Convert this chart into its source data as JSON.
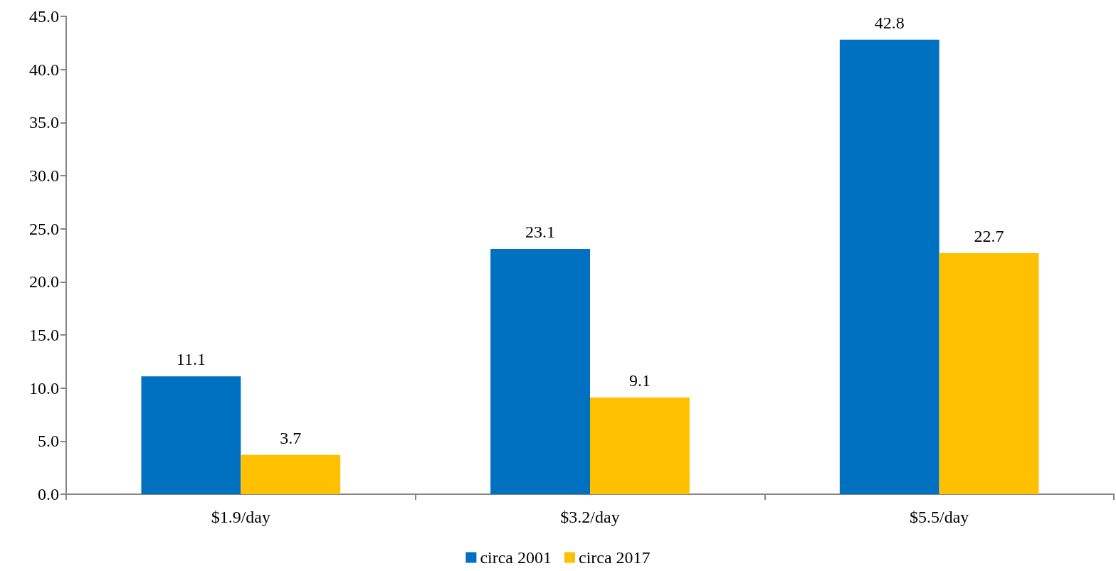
{
  "chart_data": {
    "type": "bar",
    "categories": [
      "$1.9/day",
      "$3.2/day",
      "$5.5/day"
    ],
    "series": [
      {
        "name": "circa 2001",
        "color": "#0070c0",
        "values": [
          11.1,
          23.1,
          42.8
        ]
      },
      {
        "name": "circa 2017",
        "color": "#ffc000",
        "values": [
          3.7,
          9.1,
          22.7
        ]
      }
    ],
    "ylim": [
      0,
      45
    ],
    "yticks": [
      {
        "value": 0,
        "label": "0.0"
      },
      {
        "value": 5,
        "label": "5.0"
      },
      {
        "value": 10,
        "label": "10.0"
      },
      {
        "value": 15,
        "label": "15.0"
      },
      {
        "value": 20,
        "label": "20.0"
      },
      {
        "value": 25,
        "label": "25.0"
      },
      {
        "value": 30,
        "label": "30.0"
      },
      {
        "value": 35,
        "label": "35.0"
      },
      {
        "value": 40,
        "label": "40.0"
      },
      {
        "value": 45,
        "label": "45.0"
      }
    ],
    "data_labels": true,
    "grid": false,
    "legend": "bottom"
  }
}
